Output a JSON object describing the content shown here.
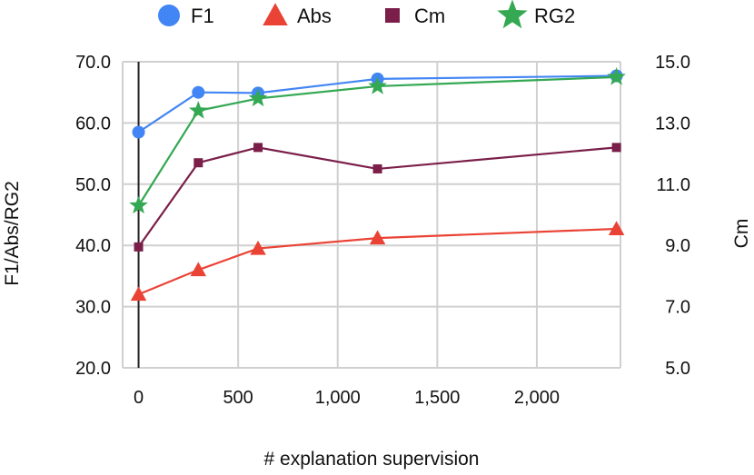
{
  "chart_data": {
    "type": "line",
    "xlabel": "# explanation supervision",
    "ylabel_left": "F1/Abs/RG2",
    "ylabel_right": "Cm",
    "x": [
      0,
      300,
      600,
      1200,
      2400
    ],
    "xlim": [
      -80,
      2420
    ],
    "x_ticks": [
      0,
      500,
      1000,
      1500,
      2000
    ],
    "x_tick_labels": [
      "0",
      "500",
      "1,000",
      "1,500",
      "2,000"
    ],
    "ylim_left": [
      20,
      70
    ],
    "y_ticks_left": [
      20,
      30,
      40,
      50,
      60,
      70
    ],
    "y_tick_labels_left": [
      "20.0",
      "30.0",
      "40.0",
      "50.0",
      "60.0",
      "70.0"
    ],
    "ylim_right": [
      5,
      15
    ],
    "y_ticks_right": [
      5,
      7,
      9,
      11,
      13,
      15
    ],
    "y_tick_labels_right": [
      "5.0",
      "7.0",
      "9.0",
      "11.0",
      "13.0",
      "15.0"
    ],
    "grid": true,
    "legend_position": "top",
    "series": [
      {
        "name": "F1",
        "axis": "left",
        "marker": "circle",
        "color": "#4285f4",
        "values": [
          58.5,
          65.0,
          64.9,
          67.2,
          67.7
        ]
      },
      {
        "name": "Abs",
        "axis": "left",
        "marker": "triangle",
        "color": "#ea4335",
        "values": [
          32.0,
          36.0,
          39.5,
          41.2,
          42.7
        ]
      },
      {
        "name": "Cm",
        "axis": "right",
        "marker": "square",
        "color": "#7b1f4a",
        "values": [
          8.95,
          11.7,
          12.2,
          11.5,
          12.2
        ]
      },
      {
        "name": "RG2",
        "axis": "left",
        "marker": "star",
        "color": "#34a853",
        "values": [
          46.5,
          62.0,
          64.0,
          66.0,
          67.5
        ]
      }
    ]
  }
}
